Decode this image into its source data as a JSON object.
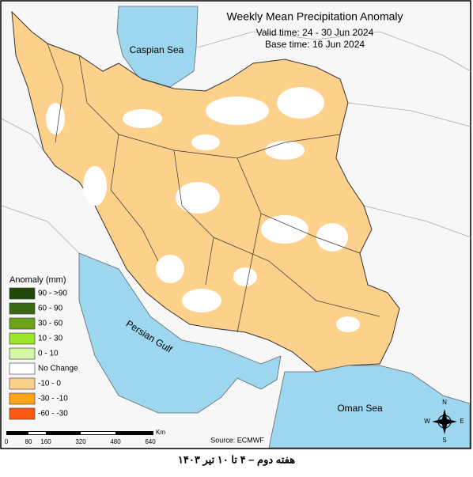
{
  "header": {
    "title": "Weekly Mean Precipitation Anomaly",
    "valid_time": "Valid time: 24 - 30 Jun 2024",
    "base_time": "Base time: 16 Jun 2024"
  },
  "labels": {
    "caspian": "Caspian Sea",
    "gulf": "Persian Gulf",
    "oman": "Oman Sea"
  },
  "legend": {
    "title": "Anomaly (mm)",
    "items": [
      {
        "label": "90 - >90",
        "color": "#1f4a0a"
      },
      {
        "label": "60 - 90",
        "color": "#3a6b12"
      },
      {
        "label": "30 - 60",
        "color": "#6aa318"
      },
      {
        "label": "10 - 30",
        "color": "#9be52a"
      },
      {
        "label": "0 - 10",
        "color": "#d4f7a8"
      },
      {
        "label": "No Change",
        "color": "#ffffff"
      },
      {
        "label": "-10 - 0",
        "color": "#fdd08c"
      },
      {
        "label": "-30 - -10",
        "color": "#ffa31a"
      },
      {
        "label": "-60 - -30",
        "color": "#ff5a14"
      }
    ]
  },
  "scale": {
    "labels": [
      "0",
      "80",
      "160",
      "320",
      "480",
      "640"
    ],
    "unit": "Km"
  },
  "source": "Source: ECMWF",
  "compass": {
    "n": "N",
    "e": "E",
    "s": "S",
    "w": "W"
  },
  "caption": "هفته دوم – ۴ تا ۱۰ تیر ۱۴۰۳"
}
